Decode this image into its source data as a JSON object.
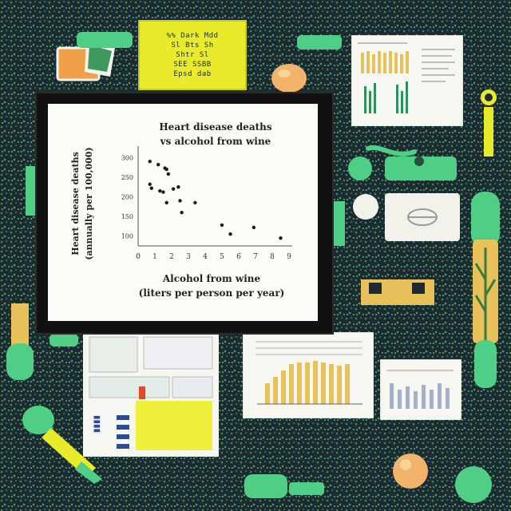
{
  "sticky_note": {
    "lines": [
      "%% Dark Mdd",
      "Sl Bts Sh",
      "Shtr Sl",
      "SEE SSBB",
      "Epsd dab"
    ]
  },
  "chart_data": {
    "type": "scatter",
    "title_line1": "Heart disease deaths",
    "title_line2": "vs alcohol from wine",
    "ylabel_line1": "Heart disease deaths",
    "ylabel_line2": "(annually per 100,000)",
    "xlabel_line1": "Alcohol from wine",
    "xlabel_line2": "(liters per person per year)",
    "x_ticks": [
      "0",
      "1",
      "2",
      "3",
      "4",
      "5",
      "6",
      "7",
      "8",
      "9"
    ],
    "y_ticks": [
      "300",
      "250",
      "200",
      "150",
      "100"
    ],
    "xlim": [
      0,
      9
    ],
    "ylim": [
      75,
      325
    ],
    "points": [
      [
        0.7,
        290
      ],
      [
        1.2,
        282
      ],
      [
        1.6,
        273
      ],
      [
        1.8,
        258
      ],
      [
        1.7,
        270
      ],
      [
        0.7,
        232
      ],
      [
        0.8,
        222
      ],
      [
        1.3,
        215
      ],
      [
        1.5,
        212
      ],
      [
        2.1,
        220
      ],
      [
        2.4,
        225
      ],
      [
        1.7,
        185
      ],
      [
        2.5,
        190
      ],
      [
        2.6,
        160
      ],
      [
        3.4,
        185
      ],
      [
        5.0,
        128
      ],
      [
        5.5,
        105
      ],
      [
        6.9,
        122
      ],
      [
        8.5,
        95
      ]
    ],
    "grid": false
  },
  "colors": {
    "background": "#1d2b2f",
    "speckle_green": "#2f8f5f",
    "speckle_blue": "#4c6fa8",
    "mint": "#4fce85",
    "yellow": "#e8ea2a",
    "bar_gold": "#e9c15a",
    "peach": "#f2b36b"
  },
  "icons": {
    "sticky_note": "sticky-note-icon",
    "sharpener": "sharpener-icon",
    "pencil": "pencil-icon",
    "eraser": "eraser-icon",
    "brush": "brush-icon",
    "clip": "paper-clip-icon"
  }
}
